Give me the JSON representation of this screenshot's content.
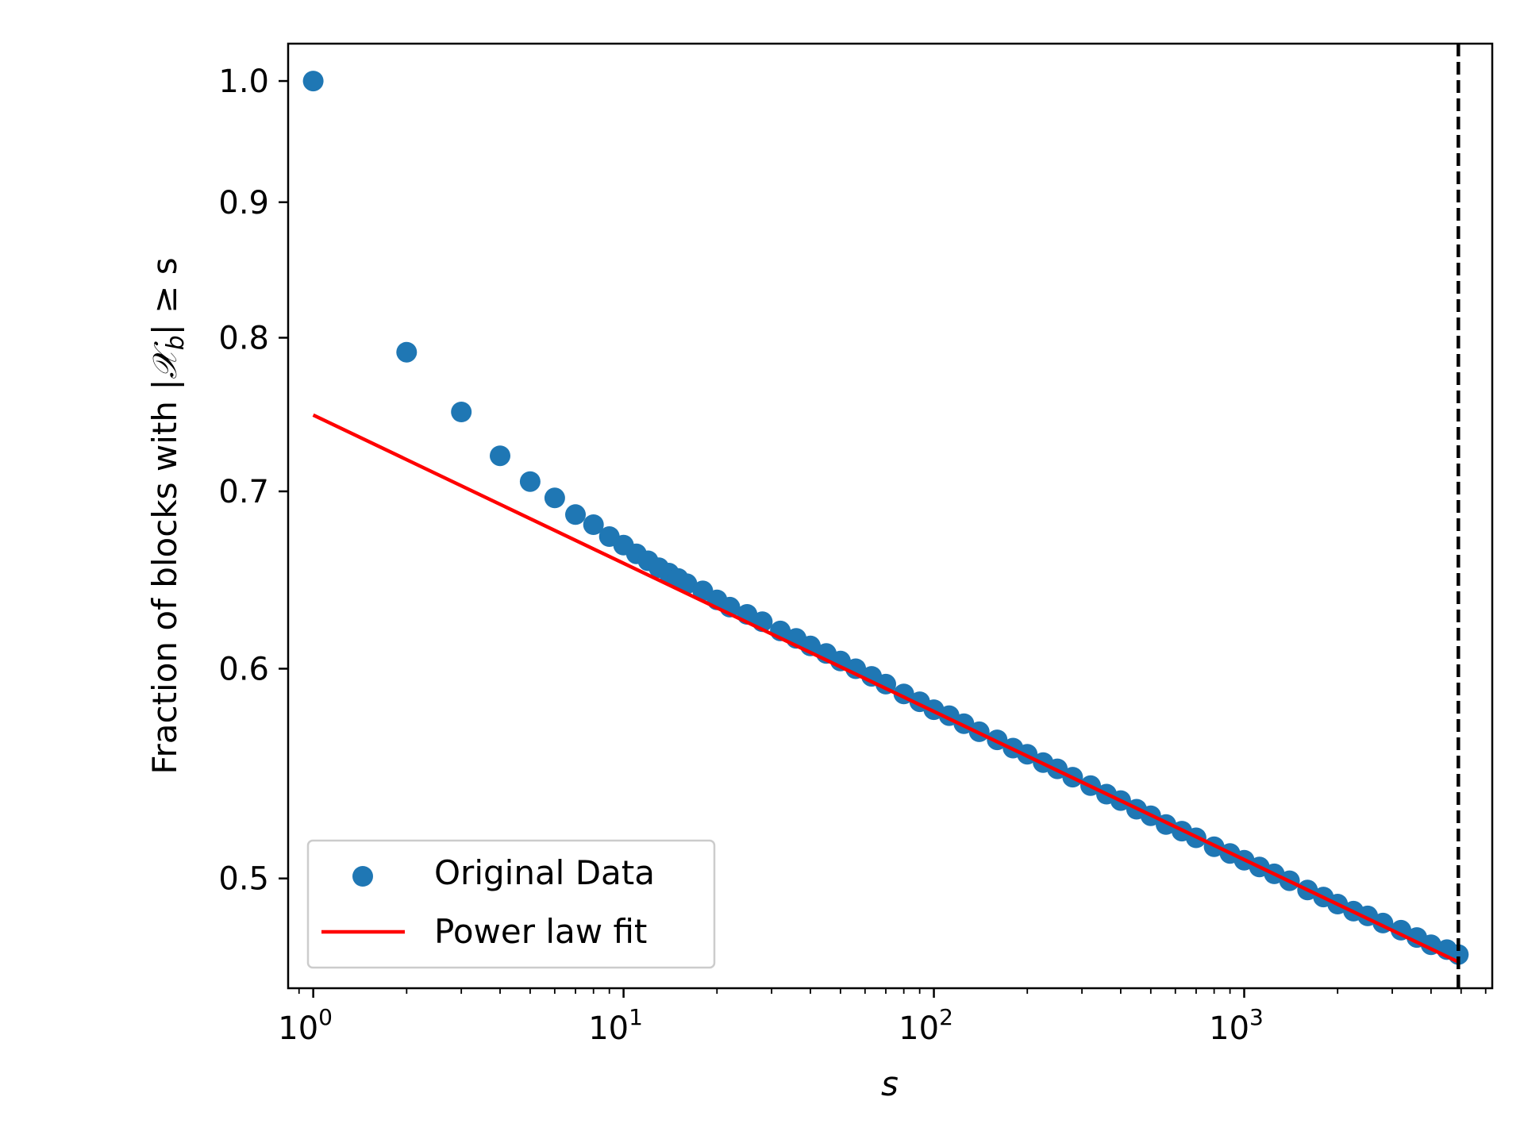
{
  "chart_data": {
    "type": "scatter",
    "title": "",
    "xlabel": "s",
    "ylabel_prefix": "Fraction of blocks with |",
    "ylabel_math_symbol": "𝒳",
    "ylabel_math_subscript": "b",
    "ylabel_suffix": "| ≥ s",
    "xscale": "log",
    "yscale": "log",
    "xlim": [
      0.83,
      6300
    ],
    "ylim": [
      0.4545,
      1.033
    ],
    "x_ticks": [
      {
        "base": "10",
        "exp": "0",
        "value": 1
      },
      {
        "base": "10",
        "exp": "1",
        "value": 10
      },
      {
        "base": "10",
        "exp": "2",
        "value": 100
      },
      {
        "base": "10",
        "exp": "3",
        "value": 1000
      }
    ],
    "y_ticks": [
      {
        "label": "0.5",
        "value": 0.5
      },
      {
        "label": "0.6",
        "value": 0.6
      },
      {
        "label": "0.7",
        "value": 0.7
      },
      {
        "label": "0.8",
        "value": 0.8
      },
      {
        "label": "0.9",
        "value": 0.9
      },
      {
        "label": "1.0",
        "value": 1.0
      }
    ],
    "series": [
      {
        "name": "Original Data",
        "kind": "scatter",
        "color": "#1f77b4",
        "x": [
          1,
          2,
          3,
          4,
          5,
          6,
          7,
          8,
          9,
          10,
          11,
          12,
          13,
          14,
          15,
          16,
          18,
          20,
          22,
          25,
          28,
          32,
          36,
          40,
          45,
          50,
          56,
          63,
          70,
          80,
          90,
          100,
          112,
          125,
          140,
          160,
          180,
          200,
          225,
          250,
          280,
          320,
          360,
          400,
          450,
          500,
          560,
          630,
          700,
          800,
          900,
          1000,
          1120,
          1250,
          1400,
          1600,
          1800,
          2000,
          2250,
          2500,
          2800,
          3200,
          3600,
          4000,
          4500,
          4900
        ],
        "y": [
          1.0,
          0.79,
          0.75,
          0.722,
          0.706,
          0.696,
          0.686,
          0.68,
          0.673,
          0.668,
          0.663,
          0.659,
          0.655,
          0.652,
          0.649,
          0.646,
          0.642,
          0.637,
          0.633,
          0.629,
          0.625,
          0.62,
          0.616,
          0.612,
          0.608,
          0.604,
          0.6,
          0.596,
          0.592,
          0.587,
          0.583,
          0.579,
          0.576,
          0.572,
          0.568,
          0.564,
          0.56,
          0.557,
          0.553,
          0.55,
          0.546,
          0.542,
          0.538,
          0.535,
          0.531,
          0.528,
          0.524,
          0.521,
          0.518,
          0.514,
          0.511,
          0.508,
          0.505,
          0.502,
          0.499,
          0.495,
          0.492,
          0.489,
          0.486,
          0.484,
          0.481,
          0.478,
          0.475,
          0.472,
          0.47,
          0.468
        ]
      },
      {
        "name": "Power law fit",
        "kind": "line",
        "color": "#ff0000",
        "x": [
          1,
          4900
        ],
        "y": [
          0.748,
          0.465
        ]
      }
    ],
    "vline": {
      "x": 4900,
      "color": "#000000",
      "style": "dashed"
    },
    "legend": {
      "location": "lower-left",
      "entries": [
        "Original Data",
        "Power law fit"
      ]
    },
    "grid": false
  }
}
